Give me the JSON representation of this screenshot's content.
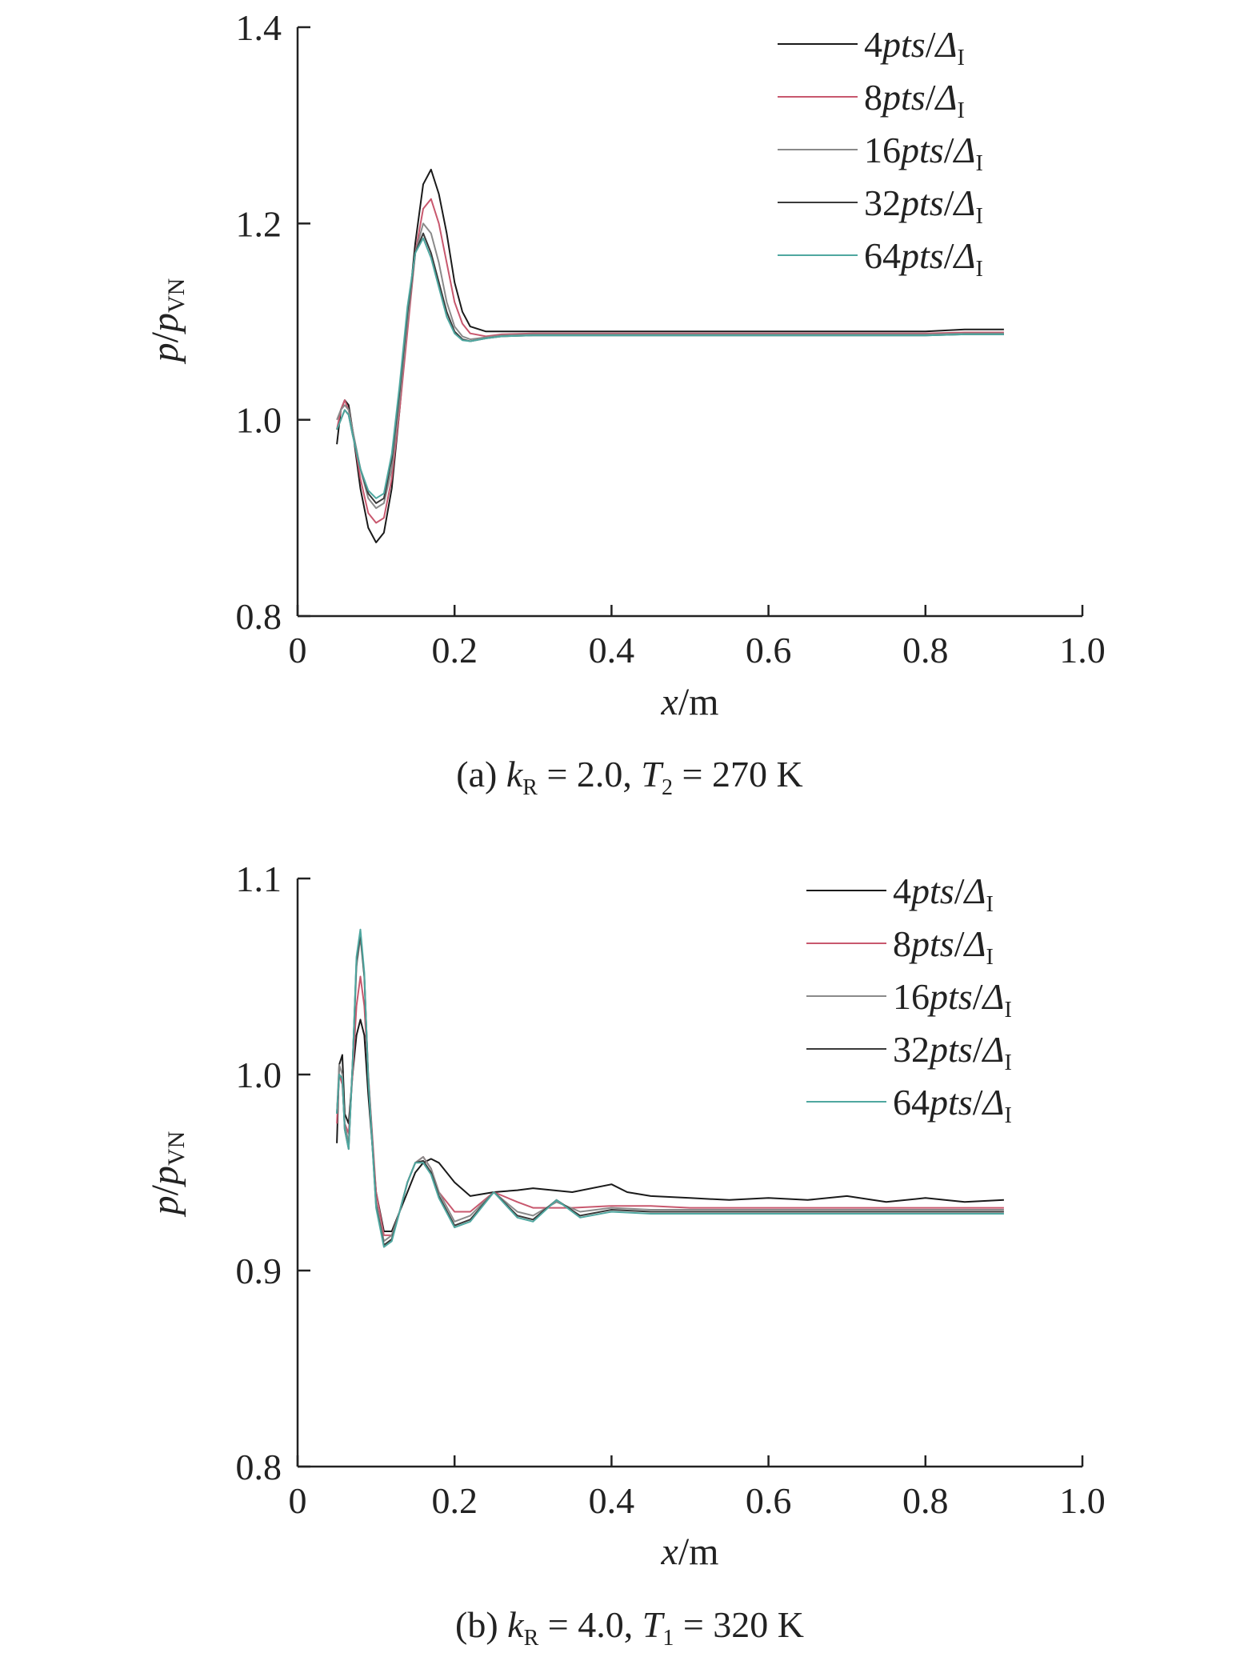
{
  "chart_data": [
    {
      "type": "line",
      "caption": "(a) kR = 2.0, T2 = 270 K",
      "caption_parts": {
        "prefix": "(a) ",
        "k": "k",
        "k_sub": "R",
        "mid": " = 2.0, ",
        "T": "T",
        "T_sub": "2",
        "suffix": " = 270 K"
      },
      "xlabel": "x/m",
      "xlabel_parts": {
        "var": "x",
        "unit": "/m"
      },
      "ylabel": "p/pVN",
      "ylabel_parts": {
        "p": "p",
        "slash": "/",
        "p2": "p",
        "sub": "VN"
      },
      "xlim": [
        0,
        1.0
      ],
      "ylim": [
        0.8,
        1.4
      ],
      "xticks": [
        "0",
        "0.2",
        "0.4",
        "0.6",
        "0.8",
        "1.0"
      ],
      "xtick_values": [
        0,
        0.2,
        0.4,
        0.6,
        0.8,
        1.0
      ],
      "yticks": [
        "0.8",
        "1.0",
        "1.2",
        "1.4"
      ],
      "ytick_values": [
        0.8,
        1.0,
        1.2,
        1.4
      ],
      "grid": false,
      "legend_position": "top-right",
      "series": [
        {
          "name": "4pts/ΔI",
          "name_parts": {
            "num": "4",
            "pts": "pts",
            "slash": "/",
            "delta": "Δ",
            "sub": "I"
          },
          "color": "#1a1a1a",
          "x": [
            0.05,
            0.055,
            0.06,
            0.065,
            0.07,
            0.08,
            0.09,
            0.1,
            0.11,
            0.12,
            0.13,
            0.14,
            0.15,
            0.16,
            0.17,
            0.18,
            0.19,
            0.2,
            0.21,
            0.22,
            0.24,
            0.26,
            0.3,
            0.4,
            0.5,
            0.6,
            0.7,
            0.8,
            0.85,
            0.9
          ],
          "y": [
            0.975,
            1.01,
            1.02,
            1.015,
            0.99,
            0.93,
            0.89,
            0.875,
            0.885,
            0.93,
            1.01,
            1.1,
            1.18,
            1.24,
            1.255,
            1.23,
            1.19,
            1.14,
            1.11,
            1.095,
            1.09,
            1.09,
            1.09,
            1.09,
            1.09,
            1.09,
            1.09,
            1.09,
            1.092,
            1.092
          ]
        },
        {
          "name": "8pts/ΔI",
          "name_parts": {
            "num": "8",
            "pts": "pts",
            "slash": "/",
            "delta": "Δ",
            "sub": "I"
          },
          "color": "#c8586e",
          "x": [
            0.05,
            0.055,
            0.06,
            0.065,
            0.07,
            0.08,
            0.09,
            0.1,
            0.11,
            0.12,
            0.13,
            0.14,
            0.15,
            0.16,
            0.17,
            0.18,
            0.19,
            0.2,
            0.21,
            0.22,
            0.24,
            0.26,
            0.3,
            0.4,
            0.5,
            0.6,
            0.7,
            0.8,
            0.85,
            0.9
          ],
          "y": [
            0.99,
            1.01,
            1.02,
            1.01,
            0.99,
            0.94,
            0.905,
            0.895,
            0.9,
            0.94,
            1.01,
            1.09,
            1.17,
            1.215,
            1.225,
            1.2,
            1.16,
            1.12,
            1.098,
            1.088,
            1.085,
            1.087,
            1.088,
            1.088,
            1.088,
            1.088,
            1.088,
            1.088,
            1.089,
            1.089
          ]
        },
        {
          "name": "16pts/ΔI",
          "name_parts": {
            "num": "16",
            "pts": "pts",
            "slash": "/",
            "delta": "Δ",
            "sub": "I"
          },
          "color": "#8a8a8a",
          "x": [
            0.05,
            0.055,
            0.06,
            0.065,
            0.07,
            0.08,
            0.09,
            0.1,
            0.11,
            0.12,
            0.13,
            0.14,
            0.15,
            0.16,
            0.17,
            0.18,
            0.19,
            0.2,
            0.21,
            0.22,
            0.24,
            0.26,
            0.3,
            0.4,
            0.5,
            0.6,
            0.7,
            0.8,
            0.85,
            0.9
          ],
          "y": [
            1.0,
            1.01,
            1.015,
            1.01,
            0.99,
            0.95,
            0.92,
            0.91,
            0.915,
            0.95,
            1.02,
            1.1,
            1.17,
            1.2,
            1.19,
            1.16,
            1.12,
            1.095,
            1.085,
            1.082,
            1.084,
            1.086,
            1.087,
            1.087,
            1.087,
            1.087,
            1.087,
            1.087,
            1.088,
            1.088
          ]
        },
        {
          "name": "32pts/ΔI",
          "name_parts": {
            "num": "32",
            "pts": "pts",
            "slash": "/",
            "delta": "Δ",
            "sub": "I"
          },
          "color": "#3a3a3a",
          "x": [
            0.05,
            0.055,
            0.06,
            0.065,
            0.07,
            0.08,
            0.09,
            0.1,
            0.11,
            0.12,
            0.13,
            0.14,
            0.15,
            0.16,
            0.17,
            0.18,
            0.19,
            0.2,
            0.21,
            0.22,
            0.24,
            0.26,
            0.3,
            0.4,
            0.5,
            0.6,
            0.7,
            0.8,
            0.85,
            0.9
          ],
          "y": [
            0.99,
            1.0,
            1.01,
            1.005,
            0.985,
            0.95,
            0.925,
            0.915,
            0.92,
            0.96,
            1.03,
            1.11,
            1.17,
            1.19,
            1.17,
            1.14,
            1.11,
            1.09,
            1.082,
            1.08,
            1.083,
            1.085,
            1.086,
            1.086,
            1.086,
            1.086,
            1.086,
            1.086,
            1.087,
            1.087
          ]
        },
        {
          "name": "64pts/ΔI",
          "name_parts": {
            "num": "64",
            "pts": "pts",
            "slash": "/",
            "delta": "Δ",
            "sub": "I"
          },
          "color": "#4fa7a0",
          "x": [
            0.05,
            0.055,
            0.06,
            0.065,
            0.07,
            0.08,
            0.09,
            0.1,
            0.11,
            0.12,
            0.13,
            0.14,
            0.15,
            0.16,
            0.17,
            0.18,
            0.19,
            0.2,
            0.21,
            0.22,
            0.24,
            0.26,
            0.3,
            0.4,
            0.5,
            0.6,
            0.7,
            0.8,
            0.85,
            0.9
          ],
          "y": [
            0.99,
            1.0,
            1.01,
            1.005,
            0.985,
            0.95,
            0.928,
            0.92,
            0.925,
            0.965,
            1.035,
            1.115,
            1.17,
            1.185,
            1.165,
            1.135,
            1.105,
            1.088,
            1.081,
            1.08,
            1.083,
            1.085,
            1.086,
            1.086,
            1.086,
            1.086,
            1.086,
            1.086,
            1.087,
            1.087
          ]
        }
      ]
    },
    {
      "type": "line",
      "caption": "(b) kR = 4.0, T1 = 320 K",
      "caption_parts": {
        "prefix": "(b) ",
        "k": "k",
        "k_sub": "R",
        "mid": " = 4.0, ",
        "T": "T",
        "T_sub": "1",
        "suffix": " = 320 K"
      },
      "xlabel": "x/m",
      "xlabel_parts": {
        "var": "x",
        "unit": "/m"
      },
      "ylabel": "p/pVN",
      "ylabel_parts": {
        "p": "p",
        "slash": "/",
        "p2": "p",
        "sub": "VN"
      },
      "xlim": [
        0,
        1.0
      ],
      "ylim": [
        0.8,
        1.1
      ],
      "xticks": [
        "0",
        "0.2",
        "0.4",
        "0.6",
        "0.8",
        "1.0"
      ],
      "xtick_values": [
        0,
        0.2,
        0.4,
        0.6,
        0.8,
        1.0
      ],
      "yticks": [
        "0.8",
        "0.9",
        "1.0",
        "1.1"
      ],
      "ytick_values": [
        0.8,
        0.9,
        1.0,
        1.1
      ],
      "grid": false,
      "legend_position": "top-right",
      "series": [
        {
          "name": "4pts/ΔI",
          "name_parts": {
            "num": "4",
            "pts": "pts",
            "slash": "/",
            "delta": "Δ",
            "sub": "I"
          },
          "color": "#1a1a1a",
          "x": [
            0.05,
            0.053,
            0.057,
            0.06,
            0.065,
            0.07,
            0.075,
            0.08,
            0.085,
            0.09,
            0.1,
            0.11,
            0.12,
            0.13,
            0.14,
            0.15,
            0.16,
            0.17,
            0.18,
            0.2,
            0.22,
            0.25,
            0.28,
            0.3,
            0.35,
            0.4,
            0.42,
            0.45,
            0.5,
            0.55,
            0.6,
            0.65,
            0.7,
            0.75,
            0.8,
            0.85,
            0.9
          ],
          "y": [
            0.965,
            1.005,
            1.01,
            0.98,
            0.975,
            1.0,
            1.02,
            1.028,
            1.02,
            0.99,
            0.94,
            0.92,
            0.92,
            0.93,
            0.94,
            0.95,
            0.955,
            0.957,
            0.955,
            0.945,
            0.938,
            0.94,
            0.941,
            0.942,
            0.94,
            0.944,
            0.94,
            0.938,
            0.937,
            0.936,
            0.937,
            0.936,
            0.938,
            0.935,
            0.937,
            0.935,
            0.936
          ]
        },
        {
          "name": "8pts/ΔI",
          "name_parts": {
            "num": "8",
            "pts": "pts",
            "slash": "/",
            "delta": "Δ",
            "sub": "I"
          },
          "color": "#c8586e",
          "x": [
            0.05,
            0.053,
            0.057,
            0.06,
            0.065,
            0.07,
            0.075,
            0.08,
            0.085,
            0.09,
            0.1,
            0.11,
            0.12,
            0.13,
            0.14,
            0.15,
            0.16,
            0.17,
            0.18,
            0.2,
            0.22,
            0.25,
            0.28,
            0.3,
            0.35,
            0.4,
            0.45,
            0.5,
            0.55,
            0.6,
            0.65,
            0.7,
            0.75,
            0.8,
            0.85,
            0.9
          ],
          "y": [
            0.975,
            1.0,
            0.995,
            0.975,
            0.97,
            1.0,
            1.035,
            1.05,
            1.035,
            1.0,
            0.94,
            0.918,
            0.918,
            0.93,
            0.945,
            0.955,
            0.958,
            0.952,
            0.94,
            0.93,
            0.93,
            0.94,
            0.935,
            0.932,
            0.932,
            0.933,
            0.933,
            0.932,
            0.932,
            0.932,
            0.932,
            0.932,
            0.932,
            0.932,
            0.932,
            0.932
          ]
        },
        {
          "name": "16pts/ΔI",
          "name_parts": {
            "num": "16",
            "pts": "pts",
            "slash": "/",
            "delta": "Δ",
            "sub": "I"
          },
          "color": "#8a8a8a",
          "x": [
            0.05,
            0.053,
            0.057,
            0.06,
            0.065,
            0.07,
            0.075,
            0.08,
            0.085,
            0.09,
            0.1,
            0.11,
            0.12,
            0.13,
            0.14,
            0.15,
            0.16,
            0.17,
            0.18,
            0.2,
            0.22,
            0.25,
            0.28,
            0.3,
            0.33,
            0.36,
            0.4,
            0.45,
            0.5,
            0.6,
            0.7,
            0.8,
            0.9
          ],
          "y": [
            0.98,
            1.005,
            1.0,
            0.975,
            0.965,
            1.005,
            1.055,
            1.07,
            1.05,
            1.0,
            0.935,
            0.915,
            0.918,
            0.93,
            0.945,
            0.955,
            0.958,
            0.952,
            0.94,
            0.925,
            0.928,
            0.94,
            0.93,
            0.928,
            0.935,
            0.93,
            0.932,
            0.931,
            0.931,
            0.931,
            0.931,
            0.931,
            0.931
          ]
        },
        {
          "name": "32pts/ΔI",
          "name_parts": {
            "num": "32",
            "pts": "pts",
            "slash": "/",
            "delta": "Δ",
            "sub": "I"
          },
          "color": "#3a3a3a",
          "x": [
            0.05,
            0.053,
            0.057,
            0.06,
            0.065,
            0.07,
            0.075,
            0.08,
            0.085,
            0.09,
            0.1,
            0.11,
            0.12,
            0.13,
            0.14,
            0.15,
            0.16,
            0.17,
            0.18,
            0.2,
            0.22,
            0.25,
            0.28,
            0.3,
            0.33,
            0.36,
            0.4,
            0.45,
            0.5,
            0.6,
            0.7,
            0.8,
            0.9
          ],
          "y": [
            0.98,
            1.0,
            0.998,
            0.972,
            0.962,
            1.005,
            1.058,
            1.072,
            1.05,
            0.998,
            0.933,
            0.913,
            0.916,
            0.93,
            0.945,
            0.955,
            0.956,
            0.95,
            0.938,
            0.923,
            0.926,
            0.94,
            0.928,
            0.926,
            0.936,
            0.928,
            0.931,
            0.93,
            0.93,
            0.93,
            0.93,
            0.93,
            0.93
          ]
        },
        {
          "name": "64pts/ΔI",
          "name_parts": {
            "num": "64",
            "pts": "pts",
            "slash": "/",
            "delta": "Δ",
            "sub": "I"
          },
          "color": "#4fa7a0",
          "x": [
            0.05,
            0.053,
            0.057,
            0.06,
            0.065,
            0.07,
            0.075,
            0.08,
            0.085,
            0.09,
            0.1,
            0.11,
            0.12,
            0.13,
            0.14,
            0.15,
            0.16,
            0.17,
            0.18,
            0.2,
            0.22,
            0.25,
            0.28,
            0.3,
            0.33,
            0.36,
            0.4,
            0.45,
            0.5,
            0.6,
            0.7,
            0.8,
            0.9
          ],
          "y": [
            0.98,
            1.0,
            0.998,
            0.972,
            0.962,
            1.005,
            1.06,
            1.074,
            1.052,
            0.998,
            0.932,
            0.912,
            0.915,
            0.93,
            0.945,
            0.955,
            0.955,
            0.949,
            0.937,
            0.922,
            0.925,
            0.94,
            0.927,
            0.925,
            0.936,
            0.927,
            0.93,
            0.929,
            0.929,
            0.929,
            0.929,
            0.929,
            0.929
          ]
        }
      ]
    }
  ]
}
